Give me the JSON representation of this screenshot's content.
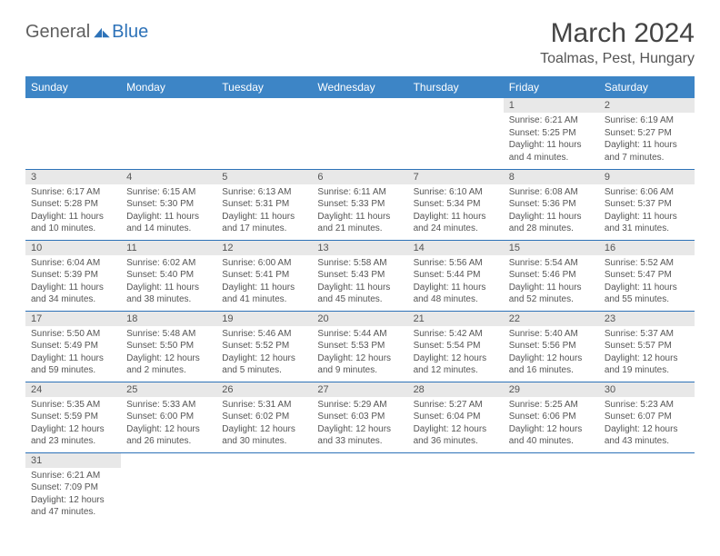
{
  "logo": {
    "text1": "General",
    "text2": "Blue"
  },
  "title": "March 2024",
  "location": "Toalmas, Pest, Hungary",
  "colors": {
    "header_bg": "#3d85c6",
    "header_text": "#ffffff",
    "daynum_bg": "#e8e8e8",
    "border": "#2d72b8",
    "text": "#555555",
    "logo_blue": "#2d72b8"
  },
  "weekdays": [
    "Sunday",
    "Monday",
    "Tuesday",
    "Wednesday",
    "Thursday",
    "Friday",
    "Saturday"
  ],
  "weeks": [
    [
      null,
      null,
      null,
      null,
      null,
      {
        "n": "1",
        "sr": "Sunrise: 6:21 AM",
        "ss": "Sunset: 5:25 PM",
        "dl": "Daylight: 11 hours and 4 minutes."
      },
      {
        "n": "2",
        "sr": "Sunrise: 6:19 AM",
        "ss": "Sunset: 5:27 PM",
        "dl": "Daylight: 11 hours and 7 minutes."
      }
    ],
    [
      {
        "n": "3",
        "sr": "Sunrise: 6:17 AM",
        "ss": "Sunset: 5:28 PM",
        "dl": "Daylight: 11 hours and 10 minutes."
      },
      {
        "n": "4",
        "sr": "Sunrise: 6:15 AM",
        "ss": "Sunset: 5:30 PM",
        "dl": "Daylight: 11 hours and 14 minutes."
      },
      {
        "n": "5",
        "sr": "Sunrise: 6:13 AM",
        "ss": "Sunset: 5:31 PM",
        "dl": "Daylight: 11 hours and 17 minutes."
      },
      {
        "n": "6",
        "sr": "Sunrise: 6:11 AM",
        "ss": "Sunset: 5:33 PM",
        "dl": "Daylight: 11 hours and 21 minutes."
      },
      {
        "n": "7",
        "sr": "Sunrise: 6:10 AM",
        "ss": "Sunset: 5:34 PM",
        "dl": "Daylight: 11 hours and 24 minutes."
      },
      {
        "n": "8",
        "sr": "Sunrise: 6:08 AM",
        "ss": "Sunset: 5:36 PM",
        "dl": "Daylight: 11 hours and 28 minutes."
      },
      {
        "n": "9",
        "sr": "Sunrise: 6:06 AM",
        "ss": "Sunset: 5:37 PM",
        "dl": "Daylight: 11 hours and 31 minutes."
      }
    ],
    [
      {
        "n": "10",
        "sr": "Sunrise: 6:04 AM",
        "ss": "Sunset: 5:39 PM",
        "dl": "Daylight: 11 hours and 34 minutes."
      },
      {
        "n": "11",
        "sr": "Sunrise: 6:02 AM",
        "ss": "Sunset: 5:40 PM",
        "dl": "Daylight: 11 hours and 38 minutes."
      },
      {
        "n": "12",
        "sr": "Sunrise: 6:00 AM",
        "ss": "Sunset: 5:41 PM",
        "dl": "Daylight: 11 hours and 41 minutes."
      },
      {
        "n": "13",
        "sr": "Sunrise: 5:58 AM",
        "ss": "Sunset: 5:43 PM",
        "dl": "Daylight: 11 hours and 45 minutes."
      },
      {
        "n": "14",
        "sr": "Sunrise: 5:56 AM",
        "ss": "Sunset: 5:44 PM",
        "dl": "Daylight: 11 hours and 48 minutes."
      },
      {
        "n": "15",
        "sr": "Sunrise: 5:54 AM",
        "ss": "Sunset: 5:46 PM",
        "dl": "Daylight: 11 hours and 52 minutes."
      },
      {
        "n": "16",
        "sr": "Sunrise: 5:52 AM",
        "ss": "Sunset: 5:47 PM",
        "dl": "Daylight: 11 hours and 55 minutes."
      }
    ],
    [
      {
        "n": "17",
        "sr": "Sunrise: 5:50 AM",
        "ss": "Sunset: 5:49 PM",
        "dl": "Daylight: 11 hours and 59 minutes."
      },
      {
        "n": "18",
        "sr": "Sunrise: 5:48 AM",
        "ss": "Sunset: 5:50 PM",
        "dl": "Daylight: 12 hours and 2 minutes."
      },
      {
        "n": "19",
        "sr": "Sunrise: 5:46 AM",
        "ss": "Sunset: 5:52 PM",
        "dl": "Daylight: 12 hours and 5 minutes."
      },
      {
        "n": "20",
        "sr": "Sunrise: 5:44 AM",
        "ss": "Sunset: 5:53 PM",
        "dl": "Daylight: 12 hours and 9 minutes."
      },
      {
        "n": "21",
        "sr": "Sunrise: 5:42 AM",
        "ss": "Sunset: 5:54 PM",
        "dl": "Daylight: 12 hours and 12 minutes."
      },
      {
        "n": "22",
        "sr": "Sunrise: 5:40 AM",
        "ss": "Sunset: 5:56 PM",
        "dl": "Daylight: 12 hours and 16 minutes."
      },
      {
        "n": "23",
        "sr": "Sunrise: 5:37 AM",
        "ss": "Sunset: 5:57 PM",
        "dl": "Daylight: 12 hours and 19 minutes."
      }
    ],
    [
      {
        "n": "24",
        "sr": "Sunrise: 5:35 AM",
        "ss": "Sunset: 5:59 PM",
        "dl": "Daylight: 12 hours and 23 minutes."
      },
      {
        "n": "25",
        "sr": "Sunrise: 5:33 AM",
        "ss": "Sunset: 6:00 PM",
        "dl": "Daylight: 12 hours and 26 minutes."
      },
      {
        "n": "26",
        "sr": "Sunrise: 5:31 AM",
        "ss": "Sunset: 6:02 PM",
        "dl": "Daylight: 12 hours and 30 minutes."
      },
      {
        "n": "27",
        "sr": "Sunrise: 5:29 AM",
        "ss": "Sunset: 6:03 PM",
        "dl": "Daylight: 12 hours and 33 minutes."
      },
      {
        "n": "28",
        "sr": "Sunrise: 5:27 AM",
        "ss": "Sunset: 6:04 PM",
        "dl": "Daylight: 12 hours and 36 minutes."
      },
      {
        "n": "29",
        "sr": "Sunrise: 5:25 AM",
        "ss": "Sunset: 6:06 PM",
        "dl": "Daylight: 12 hours and 40 minutes."
      },
      {
        "n": "30",
        "sr": "Sunrise: 5:23 AM",
        "ss": "Sunset: 6:07 PM",
        "dl": "Daylight: 12 hours and 43 minutes."
      }
    ],
    [
      {
        "n": "31",
        "sr": "Sunrise: 6:21 AM",
        "ss": "Sunset: 7:09 PM",
        "dl": "Daylight: 12 hours and 47 minutes."
      },
      null,
      null,
      null,
      null,
      null,
      null
    ]
  ]
}
